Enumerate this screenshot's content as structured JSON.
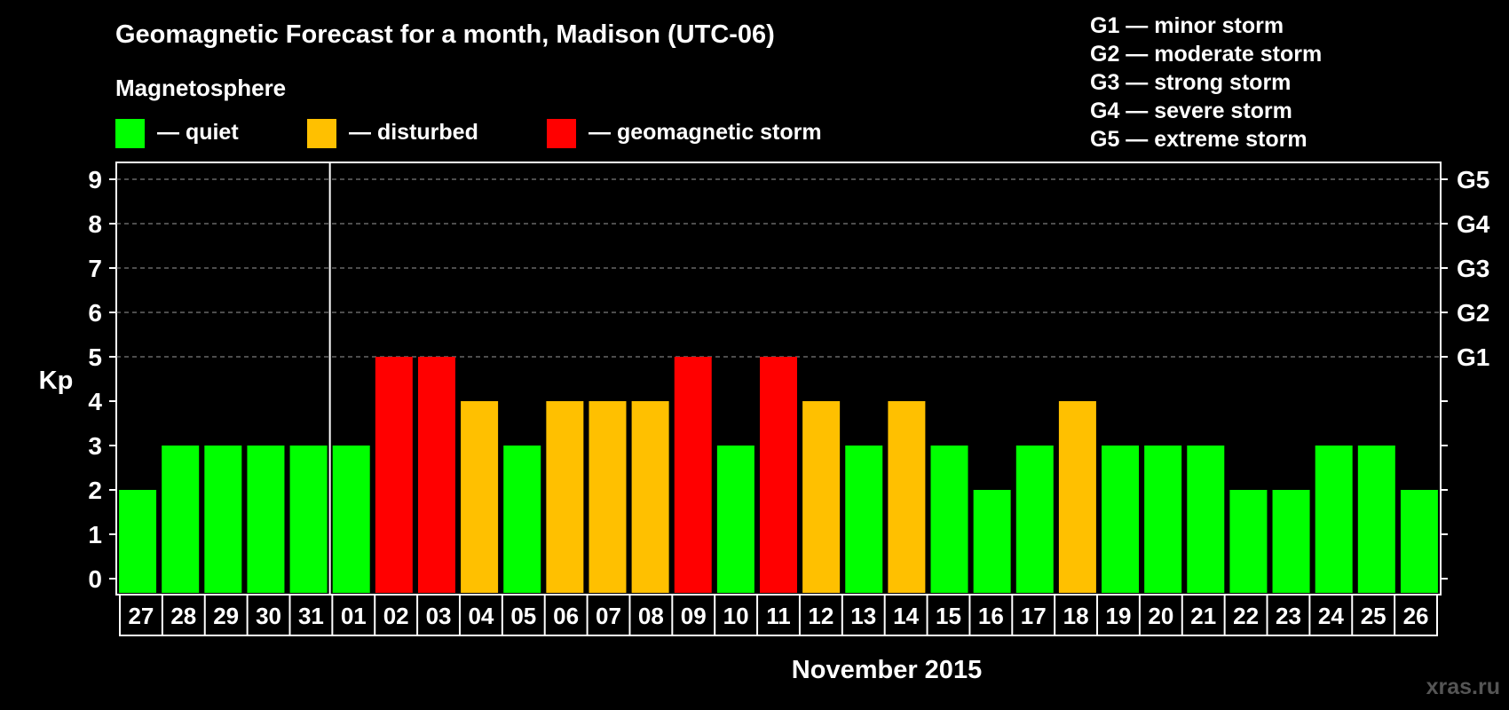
{
  "chart_data": {
    "type": "bar",
    "title": "Geomagnetic Forecast for a month, Madison (UTC-06)",
    "legend_title": "Magnetosphere",
    "legend": [
      {
        "key": "quiet",
        "label": "— quiet",
        "color": "#00ff00"
      },
      {
        "key": "disturbed",
        "label": "— disturbed",
        "color": "#ffc000"
      },
      {
        "key": "storm",
        "label": "— geomagnetic storm",
        "color": "#ff0000"
      }
    ],
    "g_scale": [
      {
        "code": "G1",
        "text": "G1 — minor storm",
        "kp": 5
      },
      {
        "code": "G2",
        "text": "G2 — moderate storm",
        "kp": 6
      },
      {
        "code": "G3",
        "text": "G3 — strong storm",
        "kp": 7
      },
      {
        "code": "G4",
        "text": "G4 — severe storm",
        "kp": 8
      },
      {
        "code": "G5",
        "text": "G5 — extreme storm",
        "kp": 9
      }
    ],
    "ylabel": "Kp",
    "xlabel": "November 2015",
    "ylim": [
      0,
      9
    ],
    "yticks": [
      0,
      1,
      2,
      3,
      4,
      5,
      6,
      7,
      8,
      9
    ],
    "categories": [
      "27",
      "28",
      "29",
      "30",
      "31",
      "01",
      "02",
      "03",
      "04",
      "05",
      "06",
      "07",
      "08",
      "09",
      "10",
      "11",
      "12",
      "13",
      "14",
      "15",
      "16",
      "17",
      "18",
      "19",
      "20",
      "21",
      "22",
      "23",
      "24",
      "25",
      "26"
    ],
    "values": [
      2,
      3,
      3,
      3,
      3,
      3,
      5,
      5,
      4,
      3,
      4,
      4,
      4,
      5,
      3,
      5,
      4,
      3,
      4,
      3,
      2,
      3,
      4,
      3,
      3,
      3,
      2,
      2,
      3,
      3,
      2
    ],
    "status": [
      "quiet",
      "quiet",
      "quiet",
      "quiet",
      "quiet",
      "quiet",
      "storm",
      "storm",
      "disturbed",
      "quiet",
      "disturbed",
      "disturbed",
      "disturbed",
      "storm",
      "quiet",
      "storm",
      "disturbed",
      "quiet",
      "disturbed",
      "quiet",
      "quiet",
      "quiet",
      "disturbed",
      "quiet",
      "quiet",
      "quiet",
      "quiet",
      "quiet",
      "quiet",
      "quiet",
      "quiet"
    ],
    "month_divider_after": "31"
  },
  "watermark": "xras.ru"
}
